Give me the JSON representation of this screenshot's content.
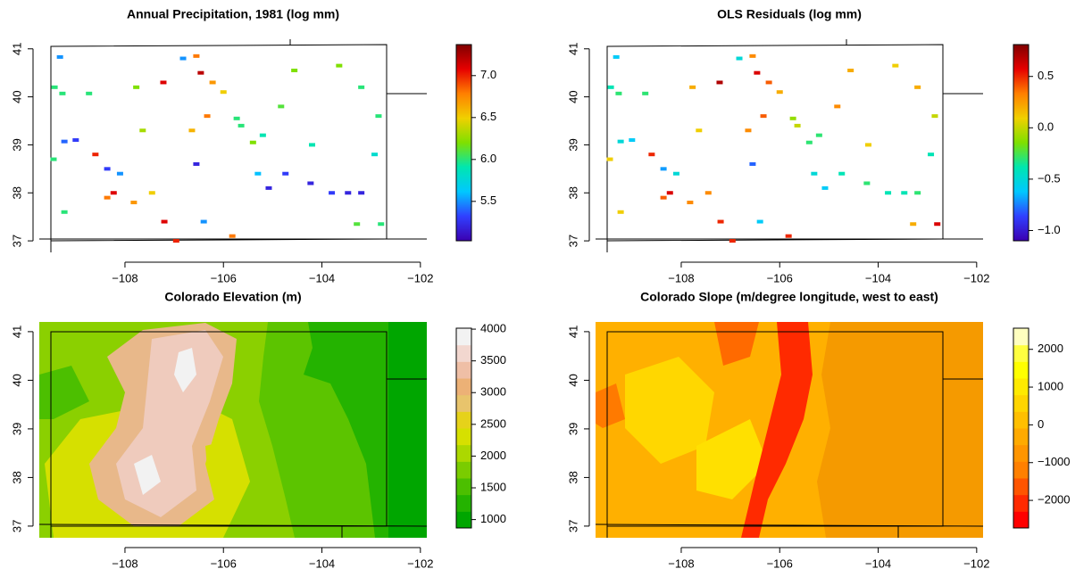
{
  "chart_data": [
    {
      "type": "scatter",
      "title": "Annual Precipitation, 1981 (log mm)",
      "xlim": [
        -109.74,
        -101.87
      ],
      "ylim": [
        36.76,
        41.2
      ],
      "xticks": [
        {
          "value": -108,
          "label": "−108"
        },
        {
          "value": -106,
          "label": "−106"
        },
        {
          "value": -104,
          "label": "−104"
        },
        {
          "value": -102,
          "label": "−102"
        }
      ],
      "yticks": [
        37,
        38,
        39,
        40,
        41
      ],
      "lon": [
        -109.32,
        -109.43,
        -109.27,
        -109.23,
        -109.0,
        -109.45,
        -108.6,
        -108.36,
        -108.1,
        -108.36,
        -108.23,
        -107.82,
        -107.45,
        -107.2,
        -106.96,
        -107.64,
        -107.77,
        -107.22,
        -106.82,
        -106.55,
        -106.46,
        -106.22,
        -106.64,
        -106.55,
        -106.33,
        -106.0,
        -105.73,
        -105.64,
        -105.4,
        -105.2,
        -105.3,
        -105.08,
        -104.74,
        -104.23,
        -104.2,
        -103.8,
        -103.47,
        -103.2,
        -102.93,
        -103.29,
        -102.8,
        -103.65,
        -103.2,
        -102.85,
        -104.56,
        -104.83,
        -105.82,
        -106.4,
        -108.73,
        -109.23
      ],
      "lat": [
        40.83,
        40.2,
        40.07,
        39.07,
        39.1,
        38.7,
        38.8,
        38.5,
        38.4,
        37.9,
        38.0,
        37.8,
        38.0,
        37.4,
        37.0,
        39.3,
        40.2,
        40.3,
        40.8,
        40.85,
        40.5,
        40.3,
        39.3,
        38.6,
        39.6,
        40.1,
        39.55,
        39.4,
        39.05,
        39.2,
        38.4,
        38.1,
        38.4,
        38.2,
        39.0,
        38.0,
        38.0,
        38.0,
        38.8,
        37.35,
        37.35,
        40.65,
        40.2,
        39.6,
        40.55,
        39.8,
        37.1,
        37.4,
        40.07,
        37.6
      ],
      "values": [
        5.5,
        6.0,
        6.0,
        5.4,
        5.3,
        6.0,
        7.0,
        5.3,
        5.5,
        6.8,
        7.1,
        6.7,
        6.5,
        7.1,
        7.0,
        6.3,
        6.2,
        7.1,
        5.5,
        6.8,
        7.2,
        6.7,
        6.6,
        5.2,
        6.8,
        6.5,
        6.0,
        6.0,
        6.2,
        5.9,
        5.6,
        5.2,
        5.3,
        5.2,
        5.9,
        5.3,
        5.2,
        5.2,
        5.8,
        6.1,
        6.0,
        6.2,
        6.0,
        6.0,
        6.2,
        6.1,
        6.8,
        5.5,
        6.0,
        6.0
      ],
      "colorbar": {
        "lim": [
          5.03,
          7.37
        ],
        "discrete": false,
        "ticks": [
          {
            "value": 5.5,
            "label": "5.5"
          },
          {
            "value": 6,
            "label": "6.0"
          },
          {
            "value": 6.5,
            "label": "6.5"
          },
          {
            "value": 7,
            "label": "7.0"
          }
        ],
        "colors": [
          "#3b00b0",
          "#3040ff",
          "#00c8ff",
          "#00e6b0",
          "#7fe000",
          "#f0d000",
          "#ff8000",
          "#e60000",
          "#800000"
        ]
      }
    },
    {
      "type": "scatter",
      "title": "OLS Residuals (log mm)",
      "xlim": [
        -109.74,
        -101.87
      ],
      "ylim": [
        36.76,
        41.2
      ],
      "xticks": [
        {
          "value": -108,
          "label": "−108"
        },
        {
          "value": -106,
          "label": "−106"
        },
        {
          "value": -104,
          "label": "−104"
        },
        {
          "value": -102,
          "label": "−102"
        }
      ],
      "yticks": [
        37,
        38,
        39,
        40,
        41
      ],
      "lon": [
        -109.32,
        -109.43,
        -109.27,
        -109.23,
        -109.0,
        -109.45,
        -108.6,
        -108.36,
        -108.1,
        -108.36,
        -108.23,
        -107.82,
        -107.45,
        -107.2,
        -106.96,
        -107.64,
        -107.77,
        -107.22,
        -106.82,
        -106.55,
        -106.46,
        -106.22,
        -106.64,
        -106.55,
        -106.33,
        -106.0,
        -105.73,
        -105.64,
        -105.4,
        -105.2,
        -105.3,
        -105.08,
        -104.74,
        -104.23,
        -104.2,
        -103.8,
        -103.47,
        -103.2,
        -102.93,
        -103.29,
        -102.8,
        -103.65,
        -103.2,
        -102.85,
        -104.56,
        -104.83,
        -105.82,
        -106.4,
        -108.73,
        -109.23
      ],
      "lat": [
        40.83,
        40.2,
        40.07,
        39.07,
        39.1,
        38.7,
        38.8,
        38.5,
        38.4,
        37.9,
        38.0,
        37.8,
        38.0,
        37.4,
        37.0,
        39.3,
        40.2,
        40.3,
        40.8,
        40.85,
        40.5,
        40.3,
        39.3,
        38.6,
        39.6,
        40.1,
        39.55,
        39.4,
        39.05,
        39.2,
        38.4,
        38.1,
        38.4,
        38.2,
        39.0,
        38.0,
        38.0,
        38.0,
        38.8,
        37.35,
        37.35,
        40.65,
        40.2,
        39.6,
        40.55,
        39.8,
        37.1,
        37.4,
        40.07,
        37.6
      ],
      "values": [
        -0.6,
        -0.4,
        -0.3,
        -0.5,
        -0.6,
        0.1,
        0.5,
        -0.7,
        -0.5,
        0.4,
        0.6,
        0.3,
        0.3,
        0.5,
        0.5,
        0.1,
        0.2,
        0.7,
        -0.5,
        0.3,
        0.6,
        0.4,
        0.3,
        -0.8,
        0.4,
        0.2,
        -0.1,
        0.0,
        -0.3,
        -0.3,
        -0.5,
        -0.6,
        -0.4,
        -0.3,
        0.1,
        -0.4,
        -0.4,
        -0.3,
        -0.4,
        0.2,
        0.6,
        0.1,
        0.2,
        0.0,
        0.2,
        0.3,
        0.5,
        -0.6,
        -0.3,
        0.1
      ],
      "colorbar": {
        "lim": [
          -1.1,
          0.81
        ],
        "discrete": false,
        "ticks": [
          {
            "value": -1,
            "label": "−1.0"
          },
          {
            "value": -0.5,
            "label": "−0.5"
          },
          {
            "value": 0,
            "label": "0.0"
          },
          0.5
        ],
        "colors": [
          "#3b00b0",
          "#3040ff",
          "#00c8ff",
          "#00e6b0",
          "#7fe000",
          "#f0d000",
          "#ff8000",
          "#e60000",
          "#800000"
        ]
      }
    },
    {
      "type": "raster",
      "title": "Colorado Elevation (m)",
      "xlim": [
        -109.74,
        -101.87
      ],
      "ylim": [
        36.76,
        41.2
      ],
      "xticks": [
        {
          "value": -108,
          "label": "−108"
        },
        {
          "value": -106,
          "label": "−106"
        },
        {
          "value": -104,
          "label": "−104"
        },
        {
          "value": -102,
          "label": "−102"
        }
      ],
      "yticks": [
        37,
        38,
        39,
        40,
        41
      ],
      "colorbar": {
        "lim": [
          868,
          4015
        ],
        "discrete": true,
        "ticks": [
          1000,
          1500,
          2000,
          2500,
          3000,
          3500,
          4000
        ],
        "colors": [
          "#00a600",
          "#24b300",
          "#4cbf00",
          "#7acc00",
          "#acd800",
          "#d6e000",
          "#e6d21a",
          "#e8c46c",
          "#ecb176",
          "#efbfa6",
          "#f2d7cf",
          "#f2f2f2"
        ]
      }
    },
    {
      "type": "raster",
      "title": "Colorado Slope (m/degree longitude, west to east)",
      "xlim": [
        -109.74,
        -101.87
      ],
      "ylim": [
        36.76,
        41.2
      ],
      "xticks": [
        {
          "value": -108,
          "label": "−108"
        },
        {
          "value": -106,
          "label": "−106"
        },
        {
          "value": -104,
          "label": "−104"
        },
        {
          "value": -102,
          "label": "−102"
        }
      ],
      "yticks": [
        37,
        38,
        39,
        40,
        41
      ],
      "colorbar": {
        "lim": [
          -2730,
          2560
        ],
        "discrete": true,
        "ticks": [
          {
            "value": -2000,
            "label": "−2000"
          },
          {
            "value": -1000,
            "label": "−1000"
          },
          0,
          1000,
          2000
        ],
        "colors": [
          "#ff0000",
          "#ff2a00",
          "#ff5500",
          "#ff8000",
          "#ff9500",
          "#ffaa00",
          "#ffbf00",
          "#ffd500",
          "#ffea00",
          "#ffff00",
          "#ffff40",
          "#ffffbf"
        ]
      }
    }
  ]
}
